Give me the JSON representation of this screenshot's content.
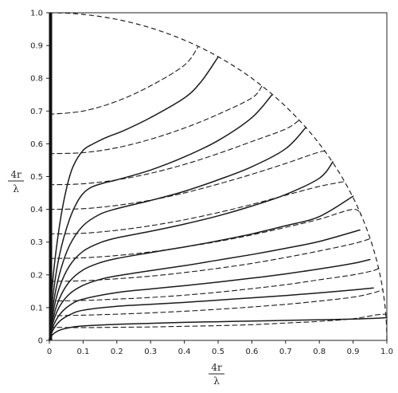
{
  "chart_data": {
    "type": "line",
    "title": "",
    "xlabel": {
      "numerator": "4r",
      "denominator": "λ"
    },
    "ylabel": {
      "numerator": "4r",
      "denominator": "λ"
    },
    "xlim": [
      0,
      1.0
    ],
    "ylim": [
      0,
      1.0
    ],
    "x_ticks": [
      "0",
      "0.1",
      "0.2",
      "0.3",
      "0.4",
      "0.5",
      "0.6",
      "0.7",
      "0.8",
      "0.9",
      "1.0"
    ],
    "y_ticks": [
      "0",
      "0.1",
      "0.2",
      "0.3",
      "0.4",
      "0.5",
      "0.6",
      "0.7",
      "0.8",
      "0.9",
      "1.0"
    ],
    "grid": false,
    "boundary": {
      "style": "dashed",
      "shape": "quarter-circle",
      "radius": 1.0
    },
    "y_axis_bold_segment": {
      "style": "thick-solid",
      "x": 0.0,
      "y_range": [
        0,
        1.0
      ]
    },
    "series": [
      {
        "style": "solid",
        "x": [
          0,
          0.01,
          0.03,
          0.06,
          0.1,
          0.2,
          0.3,
          0.4,
          0.5,
          0.6,
          0.7,
          0.8,
          0.9,
          0.98,
          1.0
        ],
        "y": [
          0,
          0.018,
          0.031,
          0.039,
          0.044,
          0.049,
          0.052,
          0.055,
          0.057,
          0.059,
          0.061,
          0.063,
          0.065,
          0.068,
          0.07
        ]
      },
      {
        "style": "solid",
        "x": [
          0,
          0.01,
          0.03,
          0.06,
          0.1,
          0.2,
          0.3,
          0.4,
          0.5,
          0.6,
          0.7,
          0.8,
          0.9,
          0.96
        ],
        "y": [
          0,
          0.03,
          0.058,
          0.078,
          0.092,
          0.104,
          0.11,
          0.116,
          0.123,
          0.13,
          0.137,
          0.145,
          0.154,
          0.16
        ]
      },
      {
        "style": "solid",
        "x": [
          0,
          0.01,
          0.03,
          0.06,
          0.1,
          0.2,
          0.3,
          0.4,
          0.5,
          0.6,
          0.7,
          0.8,
          0.9,
          0.95
        ],
        "y": [
          0,
          0.04,
          0.078,
          0.107,
          0.126,
          0.146,
          0.157,
          0.167,
          0.178,
          0.19,
          0.203,
          0.218,
          0.235,
          0.247
        ]
      },
      {
        "style": "solid",
        "x": [
          0,
          0.01,
          0.03,
          0.06,
          0.1,
          0.15,
          0.2,
          0.3,
          0.4,
          0.5,
          0.6,
          0.7,
          0.8,
          0.92
        ],
        "y": [
          0,
          0.052,
          0.103,
          0.142,
          0.168,
          0.186,
          0.197,
          0.213,
          0.228,
          0.245,
          0.262,
          0.281,
          0.302,
          0.337
        ]
      },
      {
        "style": "solid",
        "x": [
          0,
          0.01,
          0.03,
          0.06,
          0.1,
          0.15,
          0.2,
          0.3,
          0.4,
          0.5,
          0.6,
          0.7,
          0.8,
          0.9
        ],
        "y": [
          0,
          0.064,
          0.128,
          0.18,
          0.215,
          0.237,
          0.25,
          0.268,
          0.285,
          0.304,
          0.325,
          0.35,
          0.378,
          0.44
        ]
      },
      {
        "style": "solid",
        "x": [
          0,
          0.01,
          0.03,
          0.06,
          0.1,
          0.15,
          0.2,
          0.3,
          0.4,
          0.5,
          0.6,
          0.7,
          0.8,
          0.84
        ],
        "y": [
          0,
          0.08,
          0.162,
          0.228,
          0.272,
          0.298,
          0.313,
          0.333,
          0.355,
          0.38,
          0.41,
          0.445,
          0.495,
          0.545
        ]
      },
      {
        "style": "solid",
        "x": [
          0,
          0.01,
          0.03,
          0.06,
          0.1,
          0.15,
          0.2,
          0.3,
          0.4,
          0.5,
          0.6,
          0.7,
          0.76
        ],
        "y": [
          0,
          0.1,
          0.202,
          0.29,
          0.35,
          0.385,
          0.402,
          0.427,
          0.455,
          0.49,
          0.53,
          0.585,
          0.65
        ]
      },
      {
        "style": "solid",
        "x": [
          0,
          0.01,
          0.03,
          0.06,
          0.09,
          0.12,
          0.16,
          0.2,
          0.3,
          0.4,
          0.5,
          0.6,
          0.66
        ],
        "y": [
          0,
          0.13,
          0.26,
          0.37,
          0.435,
          0.465,
          0.48,
          0.49,
          0.52,
          0.56,
          0.61,
          0.68,
          0.75
        ]
      },
      {
        "style": "solid",
        "x": [
          0,
          0.01,
          0.03,
          0.05,
          0.07,
          0.1,
          0.13,
          0.17,
          0.22,
          0.3,
          0.4,
          0.45,
          0.5
        ],
        "y": [
          0,
          0.18,
          0.35,
          0.46,
          0.53,
          0.58,
          0.6,
          0.62,
          0.64,
          0.68,
          0.74,
          0.79,
          0.865
        ]
      },
      {
        "style": "dashed",
        "x": [
          0,
          0.1,
          0.2,
          0.3,
          0.4,
          0.5,
          0.6,
          0.7,
          0.8,
          0.9,
          0.97,
          0.997
        ],
        "y": [
          0.04,
          0.039,
          0.04,
          0.041,
          0.043,
          0.045,
          0.048,
          0.053,
          0.058,
          0.066,
          0.078,
          0.08
        ]
      },
      {
        "style": "dashed",
        "x": [
          0,
          0.1,
          0.2,
          0.3,
          0.4,
          0.5,
          0.6,
          0.7,
          0.8,
          0.9,
          0.96,
          0.988
        ],
        "y": [
          0.075,
          0.077,
          0.08,
          0.084,
          0.089,
          0.095,
          0.102,
          0.11,
          0.12,
          0.132,
          0.145,
          0.155
        ]
      },
      {
        "style": "dashed",
        "x": [
          0,
          0.1,
          0.2,
          0.3,
          0.4,
          0.5,
          0.6,
          0.7,
          0.8,
          0.9,
          0.96,
          0.975
        ],
        "y": [
          0.12,
          0.122,
          0.126,
          0.131,
          0.138,
          0.147,
          0.158,
          0.17,
          0.185,
          0.2,
          0.213,
          0.22
        ]
      },
      {
        "style": "dashed",
        "x": [
          0,
          0.1,
          0.2,
          0.3,
          0.4,
          0.5,
          0.6,
          0.7,
          0.8,
          0.9,
          0.95
        ],
        "y": [
          0.18,
          0.182,
          0.188,
          0.196,
          0.207,
          0.22,
          0.235,
          0.253,
          0.273,
          0.295,
          0.31
        ]
      },
      {
        "style": "dashed",
        "x": [
          0,
          0.1,
          0.2,
          0.3,
          0.4,
          0.5,
          0.6,
          0.7,
          0.8,
          0.9,
          0.925
        ],
        "y": [
          0.25,
          0.252,
          0.259,
          0.27,
          0.285,
          0.302,
          0.322,
          0.345,
          0.37,
          0.4,
          0.38
        ]
      },
      {
        "style": "dashed",
        "x": [
          0,
          0.1,
          0.2,
          0.3,
          0.4,
          0.5,
          0.6,
          0.7,
          0.8,
          0.875
        ],
        "y": [
          0.325,
          0.327,
          0.336,
          0.35,
          0.368,
          0.39,
          0.415,
          0.443,
          0.47,
          0.485
        ]
      },
      {
        "style": "dashed",
        "x": [
          0,
          0.1,
          0.2,
          0.3,
          0.4,
          0.5,
          0.6,
          0.7,
          0.8,
          0.82
        ],
        "y": [
          0.4,
          0.402,
          0.412,
          0.428,
          0.45,
          0.477,
          0.507,
          0.54,
          0.575,
          0.575
        ]
      },
      {
        "style": "dashed",
        "x": [
          0,
          0.1,
          0.2,
          0.3,
          0.4,
          0.5,
          0.6,
          0.7,
          0.74
        ],
        "y": [
          0.475,
          0.478,
          0.49,
          0.51,
          0.537,
          0.57,
          0.607,
          0.645,
          0.672
        ]
      },
      {
        "style": "dashed",
        "x": [
          0,
          0.1,
          0.2,
          0.3,
          0.4,
          0.5,
          0.6,
          0.63
        ],
        "y": [
          0.57,
          0.573,
          0.588,
          0.614,
          0.648,
          0.69,
          0.74,
          0.776
        ]
      },
      {
        "style": "dashed",
        "x": [
          0,
          0.1,
          0.2,
          0.3,
          0.4,
          0.44
        ],
        "y": [
          0.69,
          0.7,
          0.73,
          0.777,
          0.84,
          0.895
        ]
      }
    ]
  }
}
